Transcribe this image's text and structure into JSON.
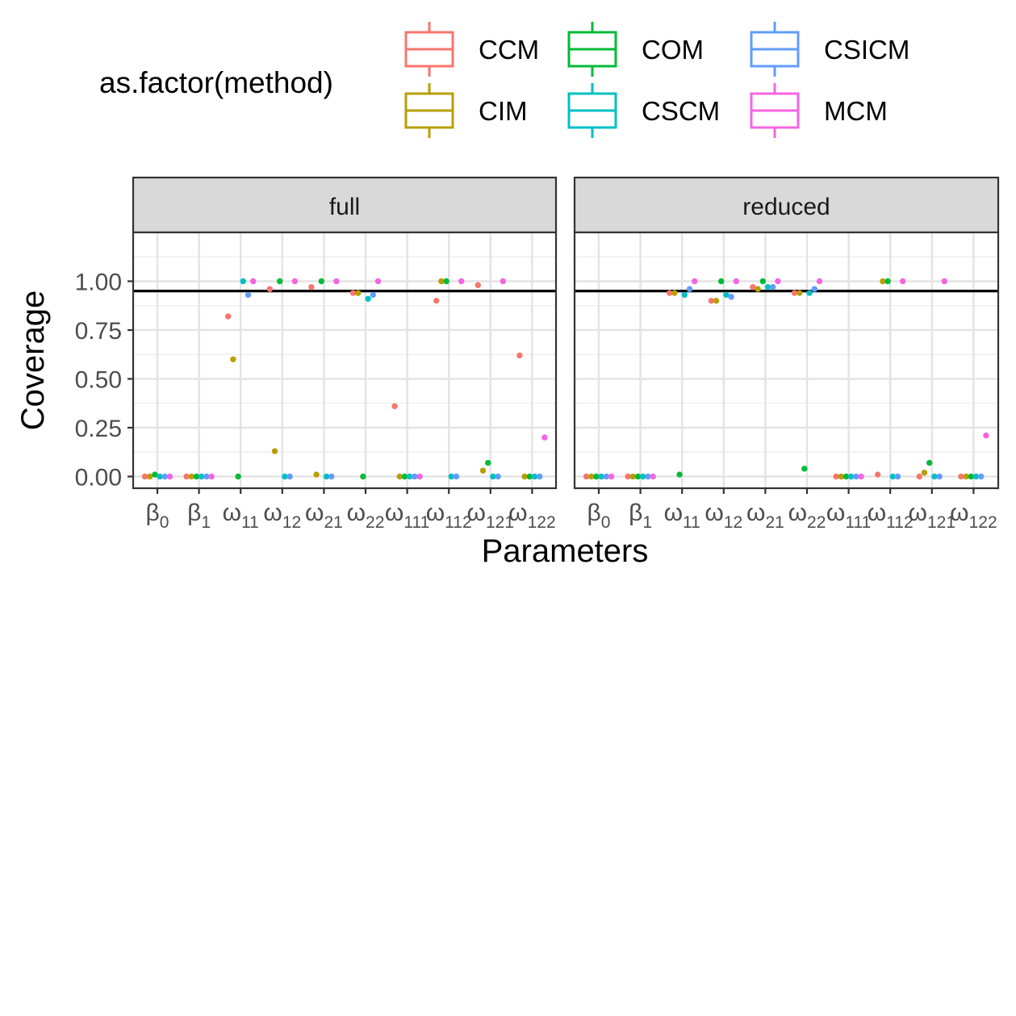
{
  "legend": {
    "title": "as.factor(method)",
    "items": [
      {
        "label": "CCM",
        "color": "#F8766D"
      },
      {
        "label": "CIM",
        "color": "#B79F00"
      },
      {
        "label": "COM",
        "color": "#00BA38"
      },
      {
        "label": "CSCM",
        "color": "#00BFC4"
      },
      {
        "label": "CSICM",
        "color": "#619CFF"
      },
      {
        "label": "MCM",
        "color": "#F564E3"
      }
    ]
  },
  "chart_data": {
    "type": "scatter",
    "title": "",
    "xlabel": "Parameters",
    "ylabel": "Coverage",
    "ylim": [
      -0.06,
      1.25
    ],
    "yticks": [
      "0.00",
      "0.25",
      "0.50",
      "0.75",
      "1.00"
    ],
    "reference_line": 0.95,
    "grid": true,
    "legend_position": "top",
    "categories": [
      {
        "base": "β",
        "sub": "0"
      },
      {
        "base": "β",
        "sub": "1"
      },
      {
        "base": "ω",
        "sub": "11"
      },
      {
        "base": "ω",
        "sub": "12"
      },
      {
        "base": "ω",
        "sub": "21"
      },
      {
        "base": "ω",
        "sub": "22"
      },
      {
        "base": "ω",
        "sub": "111"
      },
      {
        "base": "ω",
        "sub": "112"
      },
      {
        "base": "ω",
        "sub": "121"
      },
      {
        "base": "ω",
        "sub": "122"
      }
    ],
    "panels": [
      {
        "name": "full",
        "series": [
          {
            "name": "CCM",
            "values": [
              0.0,
              0.0,
              0.82,
              0.96,
              0.97,
              0.94,
              0.36,
              0.9,
              0.98,
              0.62
            ]
          },
          {
            "name": "CIM",
            "values": [
              0.0,
              0.0,
              0.6,
              0.13,
              0.01,
              0.94,
              0.0,
              1.0,
              0.03,
              0.0
            ]
          },
          {
            "name": "COM",
            "values": [
              0.01,
              0.0,
              0.0,
              1.0,
              1.0,
              0.0,
              0.0,
              1.0,
              0.07,
              0.0
            ]
          },
          {
            "name": "CSCM",
            "values": [
              0.0,
              0.0,
              1.0,
              0.0,
              0.0,
              0.91,
              0.0,
              0.0,
              0.0,
              0.0
            ]
          },
          {
            "name": "CSICM",
            "values": [
              0.0,
              0.0,
              0.93,
              0.0,
              0.0,
              0.93,
              0.0,
              0.0,
              0.0,
              0.0
            ]
          },
          {
            "name": "MCM",
            "values": [
              0.0,
              0.0,
              1.0,
              1.0,
              1.0,
              1.0,
              0.0,
              1.0,
              1.0,
              0.2
            ]
          }
        ]
      },
      {
        "name": "reduced",
        "series": [
          {
            "name": "CCM",
            "values": [
              0.0,
              0.0,
              0.94,
              0.9,
              0.97,
              0.94,
              0.0,
              0.01,
              0.0,
              0.0
            ]
          },
          {
            "name": "CIM",
            "values": [
              0.0,
              0.0,
              0.94,
              0.9,
              0.96,
              0.94,
              0.0,
              1.0,
              0.02,
              0.0
            ]
          },
          {
            "name": "COM",
            "values": [
              0.0,
              0.0,
              0.01,
              1.0,
              1.0,
              0.04,
              0.0,
              1.0,
              0.07,
              0.0
            ]
          },
          {
            "name": "CSCM",
            "values": [
              0.0,
              0.0,
              0.93,
              0.93,
              0.97,
              0.94,
              0.0,
              0.0,
              0.0,
              0.0
            ]
          },
          {
            "name": "CSICM",
            "values": [
              0.0,
              0.0,
              0.96,
              0.92,
              0.97,
              0.96,
              0.0,
              0.0,
              0.0,
              0.0
            ]
          },
          {
            "name": "MCM",
            "values": [
              0.0,
              0.0,
              1.0,
              1.0,
              1.0,
              1.0,
              0.0,
              1.0,
              1.0,
              0.21
            ]
          }
        ]
      }
    ]
  }
}
